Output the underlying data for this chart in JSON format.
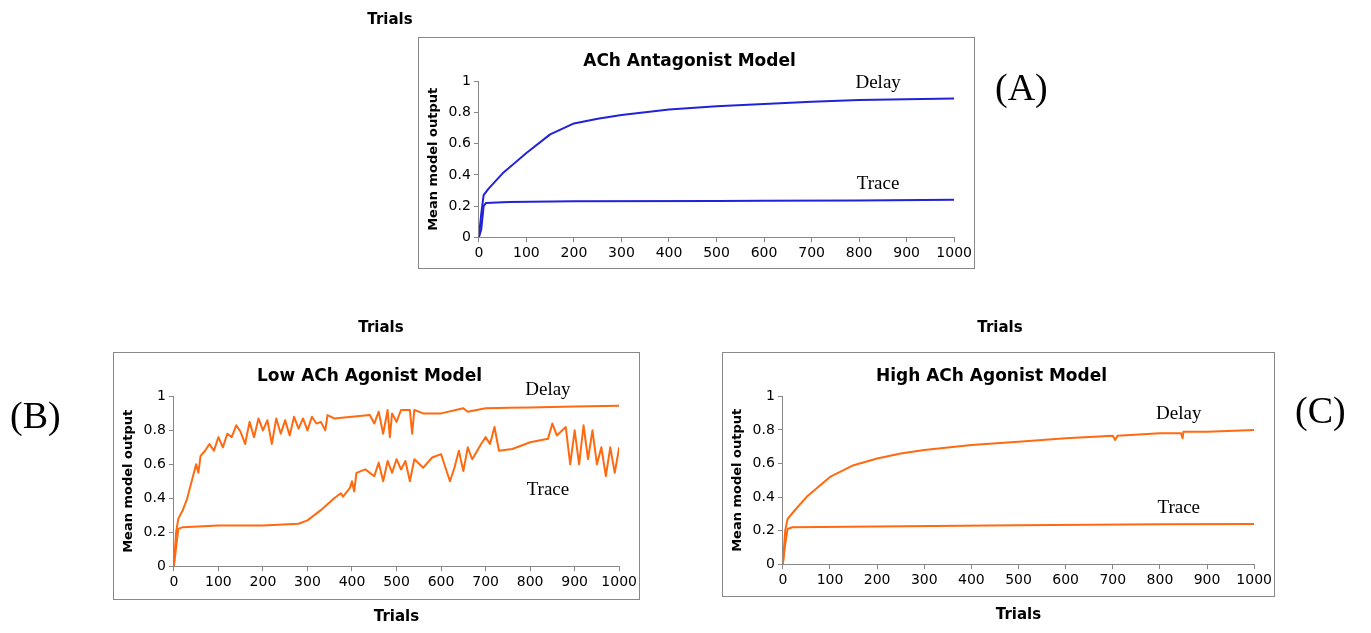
{
  "chart_data": [
    {
      "type": "line",
      "title": "ACh Antagonist Model",
      "ylabel": "Mean model output",
      "annotations": [
        "(A)",
        "Trials"
      ],
      "xlim": [
        0,
        1000
      ],
      "xticks": [
        0,
        100,
        200,
        300,
        400,
        500,
        600,
        700,
        800,
        900,
        1000
      ],
      "ylim": [
        0,
        1
      ],
      "yticks": [
        0,
        0.2,
        0.4,
        0.6,
        0.8,
        1
      ],
      "grid": false,
      "legend": false,
      "marker": "none",
      "line_style": "solid",
      "series": [
        {
          "name": "Delay",
          "color": "#2222d8",
          "x": [
            0,
            5,
            10,
            20,
            50,
            100,
            150,
            200,
            250,
            300,
            400,
            500,
            600,
            700,
            800,
            900,
            1000
          ],
          "values": [
            0,
            0.15,
            0.27,
            0.31,
            0.41,
            0.54,
            0.66,
            0.73,
            0.76,
            0.785,
            0.82,
            0.84,
            0.855,
            0.87,
            0.88,
            0.885,
            0.89
          ]
        },
        {
          "name": "Trace",
          "color": "#2222d8",
          "x": [
            0,
            5,
            10,
            15,
            50,
            200,
            500,
            800,
            1000
          ],
          "values": [
            0,
            0.05,
            0.2,
            0.22,
            0.225,
            0.23,
            0.232,
            0.236,
            0.24
          ]
        }
      ]
    },
    {
      "type": "line",
      "title": "Low ACh Agonist Model",
      "xlabel": "Trials",
      "ylabel": "Mean model output",
      "annotations": [
        "(B)",
        "Trials"
      ],
      "xlim": [
        0,
        1000
      ],
      "xticks": [
        0,
        100,
        200,
        300,
        400,
        500,
        600,
        700,
        800,
        900,
        1000
      ],
      "ylim": [
        0,
        1
      ],
      "yticks": [
        0,
        0.2,
        0.4,
        0.6,
        0.8,
        1
      ],
      "grid": false,
      "legend": false,
      "marker": "none",
      "line_style": "solid",
      "series": [
        {
          "name": "Delay",
          "color": "#ff6a10",
          "x": [
            0,
            5,
            10,
            20,
            30,
            40,
            50,
            55,
            60,
            70,
            80,
            90,
            100,
            110,
            120,
            130,
            140,
            150,
            160,
            170,
            180,
            190,
            200,
            210,
            220,
            230,
            240,
            250,
            260,
            270,
            280,
            290,
            300,
            310,
            320,
            330,
            340,
            345,
            360,
            400,
            440,
            450,
            460,
            470,
            480,
            485,
            490,
            500,
            510,
            530,
            535,
            540,
            560,
            600,
            650,
            660,
            700,
            800,
            900,
            1000
          ],
          "values": [
            0,
            0.2,
            0.28,
            0.33,
            0.4,
            0.5,
            0.6,
            0.55,
            0.65,
            0.68,
            0.72,
            0.68,
            0.76,
            0.7,
            0.78,
            0.76,
            0.83,
            0.79,
            0.72,
            0.85,
            0.76,
            0.87,
            0.8,
            0.86,
            0.72,
            0.87,
            0.78,
            0.86,
            0.77,
            0.88,
            0.81,
            0.87,
            0.8,
            0.88,
            0.84,
            0.85,
            0.8,
            0.89,
            0.87,
            0.88,
            0.89,
            0.84,
            0.91,
            0.78,
            0.92,
            0.76,
            0.9,
            0.85,
            0.92,
            0.92,
            0.78,
            0.92,
            0.9,
            0.9,
            0.93,
            0.91,
            0.93,
            0.935,
            0.94,
            0.945
          ]
        },
        {
          "name": "Trace",
          "color": "#ff6a10",
          "x": [
            0,
            10,
            20,
            100,
            200,
            280,
            300,
            330,
            360,
            375,
            380,
            395,
            400,
            405,
            410,
            430,
            450,
            460,
            470,
            480,
            490,
            500,
            510,
            520,
            530,
            540,
            560,
            580,
            600,
            610,
            620,
            630,
            640,
            650,
            660,
            670,
            690,
            700,
            710,
            720,
            730,
            760,
            800,
            840,
            850,
            860,
            880,
            890,
            900,
            910,
            920,
            930,
            940,
            950,
            960,
            970,
            980,
            990,
            1000
          ],
          "values": [
            0,
            0.22,
            0.23,
            0.24,
            0.24,
            0.25,
            0.27,
            0.33,
            0.4,
            0.43,
            0.41,
            0.46,
            0.5,
            0.44,
            0.55,
            0.57,
            0.53,
            0.61,
            0.5,
            0.62,
            0.55,
            0.63,
            0.57,
            0.62,
            0.5,
            0.63,
            0.58,
            0.64,
            0.66,
            0.58,
            0.5,
            0.58,
            0.68,
            0.56,
            0.7,
            0.63,
            0.72,
            0.76,
            0.72,
            0.82,
            0.68,
            0.69,
            0.73,
            0.75,
            0.84,
            0.77,
            0.82,
            0.6,
            0.8,
            0.6,
            0.83,
            0.63,
            0.8,
            0.6,
            0.7,
            0.53,
            0.7,
            0.55,
            0.7
          ]
        }
      ]
    },
    {
      "type": "line",
      "title": "High ACh Agonist Model",
      "xlabel": "Trials",
      "ylabel": "Mean model output",
      "annotations": [
        "(C)",
        "Trials"
      ],
      "xlim": [
        0,
        1000
      ],
      "xticks": [
        0,
        100,
        200,
        300,
        400,
        500,
        600,
        700,
        800,
        900,
        1000
      ],
      "ylim": [
        0,
        1
      ],
      "yticks": [
        0,
        0.2,
        0.4,
        0.6,
        0.8,
        1
      ],
      "grid": false,
      "legend": false,
      "marker": "none",
      "line_style": "solid",
      "series": [
        {
          "name": "Delay",
          "color": "#ff6a10",
          "x": [
            0,
            5,
            10,
            25,
            50,
            100,
            150,
            200,
            250,
            300,
            400,
            500,
            600,
            700,
            705,
            710,
            800,
            845,
            848,
            850,
            900,
            1000
          ],
          "values": [
            0,
            0.2,
            0.27,
            0.32,
            0.4,
            0.52,
            0.59,
            0.63,
            0.66,
            0.68,
            0.71,
            0.73,
            0.75,
            0.765,
            0.74,
            0.765,
            0.78,
            0.78,
            0.75,
            0.79,
            0.79,
            0.8
          ]
        },
        {
          "name": "Trace",
          "color": "#ff6a10",
          "x": [
            0,
            5,
            10,
            20,
            200,
            500,
            800,
            1000
          ],
          "values": [
            0,
            0.12,
            0.21,
            0.22,
            0.225,
            0.232,
            0.238,
            0.24
          ]
        }
      ]
    }
  ]
}
